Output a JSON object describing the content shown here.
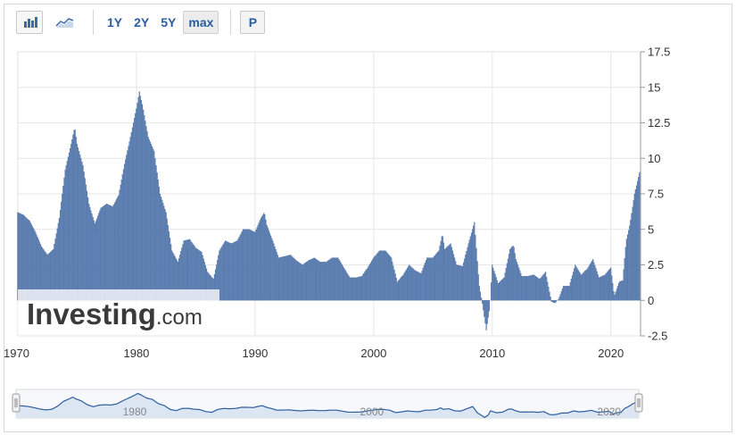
{
  "toolbar": {
    "ranges": [
      "1Y",
      "2Y",
      "5Y",
      "max"
    ],
    "active_range": "max",
    "p_label": "P",
    "icons": [
      "bar-chart-icon",
      "area-chart-icon"
    ]
  },
  "watermark": {
    "brand": "Investing",
    "suffix": ".com"
  },
  "colors": {
    "bar": "#5b7fb4",
    "bar_edge": "#3f6296",
    "grid": "#e6e6e6",
    "nav_fill": "#dce6f3",
    "nav_line": "#2e5e9e"
  },
  "chart_data": {
    "type": "bar",
    "grid": true,
    "xlim": [
      1970,
      2022.5
    ],
    "ylim": [
      -2.5,
      17.5
    ],
    "yticks": [
      "17.5",
      "15",
      "12.5",
      "10",
      "7.5",
      "5",
      "2.5",
      "0",
      "-2.5"
    ],
    "xticks": [
      "1970",
      "1980",
      "1990",
      "2000",
      "2010",
      "2020"
    ],
    "nav_xticks": [
      "1980",
      "2000",
      "2020"
    ],
    "series": [
      {
        "points": [
          [
            1970.0,
            6.2
          ],
          [
            1970.5,
            6.0
          ],
          [
            1971.0,
            5.6
          ],
          [
            1971.5,
            4.8
          ],
          [
            1972.0,
            3.8
          ],
          [
            1972.5,
            3.2
          ],
          [
            1973.0,
            3.6
          ],
          [
            1973.5,
            5.8
          ],
          [
            1974.0,
            9.2
          ],
          [
            1974.5,
            11.0
          ],
          [
            1974.8,
            12.2
          ],
          [
            1975.0,
            11.0
          ],
          [
            1975.5,
            9.5
          ],
          [
            1976.0,
            6.8
          ],
          [
            1976.5,
            5.4
          ],
          [
            1977.0,
            6.5
          ],
          [
            1977.5,
            6.8
          ],
          [
            1978.0,
            6.6
          ],
          [
            1978.5,
            7.4
          ],
          [
            1979.0,
            9.6
          ],
          [
            1979.5,
            11.5
          ],
          [
            1980.0,
            13.5
          ],
          [
            1980.25,
            14.7
          ],
          [
            1980.5,
            13.8
          ],
          [
            1981.0,
            11.5
          ],
          [
            1981.5,
            10.5
          ],
          [
            1982.0,
            7.5
          ],
          [
            1982.5,
            6.2
          ],
          [
            1983.0,
            3.5
          ],
          [
            1983.5,
            2.7
          ],
          [
            1984.0,
            4.2
          ],
          [
            1984.5,
            4.3
          ],
          [
            1985.0,
            3.7
          ],
          [
            1985.5,
            3.4
          ],
          [
            1986.0,
            2.0
          ],
          [
            1986.5,
            1.5
          ],
          [
            1987.0,
            3.5
          ],
          [
            1987.5,
            4.2
          ],
          [
            1988.0,
            4.0
          ],
          [
            1988.5,
            4.2
          ],
          [
            1989.0,
            5.0
          ],
          [
            1989.5,
            5.0
          ],
          [
            1990.0,
            4.8
          ],
          [
            1990.5,
            5.8
          ],
          [
            1990.8,
            6.2
          ],
          [
            1991.0,
            5.3
          ],
          [
            1991.5,
            4.2
          ],
          [
            1992.0,
            3.0
          ],
          [
            1992.5,
            3.1
          ],
          [
            1993.0,
            3.2
          ],
          [
            1993.5,
            2.8
          ],
          [
            1994.0,
            2.5
          ],
          [
            1994.5,
            2.8
          ],
          [
            1995.0,
            3.0
          ],
          [
            1995.5,
            2.7
          ],
          [
            1996.0,
            2.7
          ],
          [
            1996.5,
            3.0
          ],
          [
            1997.0,
            3.0
          ],
          [
            1997.5,
            2.3
          ],
          [
            1998.0,
            1.6
          ],
          [
            1998.5,
            1.6
          ],
          [
            1999.0,
            1.7
          ],
          [
            1999.5,
            2.3
          ],
          [
            2000.0,
            3.0
          ],
          [
            2000.5,
            3.5
          ],
          [
            2001.0,
            3.5
          ],
          [
            2001.5,
            3.0
          ],
          [
            2002.0,
            1.3
          ],
          [
            2002.5,
            1.8
          ],
          [
            2003.0,
            2.5
          ],
          [
            2003.5,
            2.1
          ],
          [
            2004.0,
            1.9
          ],
          [
            2004.5,
            3.0
          ],
          [
            2005.0,
            3.0
          ],
          [
            2005.5,
            3.5
          ],
          [
            2005.8,
            4.7
          ],
          [
            2006.0,
            3.6
          ],
          [
            2006.5,
            4.0
          ],
          [
            2007.0,
            2.5
          ],
          [
            2007.5,
            2.4
          ],
          [
            2008.0,
            4.0
          ],
          [
            2008.5,
            5.5
          ],
          [
            2008.9,
            1.1
          ],
          [
            2009.2,
            -0.4
          ],
          [
            2009.5,
            -2.1
          ],
          [
            2009.8,
            -0.5
          ],
          [
            2010.0,
            2.5
          ],
          [
            2010.5,
            1.2
          ],
          [
            2011.0,
            1.6
          ],
          [
            2011.5,
            3.6
          ],
          [
            2011.8,
            3.9
          ],
          [
            2012.0,
            2.9
          ],
          [
            2012.5,
            1.7
          ],
          [
            2013.0,
            1.7
          ],
          [
            2013.5,
            1.8
          ],
          [
            2014.0,
            1.5
          ],
          [
            2014.5,
            2.0
          ],
          [
            2015.0,
            -0.1
          ],
          [
            2015.3,
            -0.2
          ],
          [
            2015.6,
            0.1
          ],
          [
            2016.0,
            1.0
          ],
          [
            2016.5,
            1.0
          ],
          [
            2017.0,
            2.5
          ],
          [
            2017.5,
            1.8
          ],
          [
            2018.0,
            2.2
          ],
          [
            2018.5,
            2.9
          ],
          [
            2019.0,
            1.6
          ],
          [
            2019.5,
            1.8
          ],
          [
            2020.0,
            2.3
          ],
          [
            2020.3,
            0.3
          ],
          [
            2020.7,
            1.3
          ],
          [
            2021.0,
            1.4
          ],
          [
            2021.3,
            4.2
          ],
          [
            2021.6,
            5.3
          ],
          [
            2022.0,
            7.5
          ],
          [
            2022.45,
            9.1
          ]
        ]
      }
    ]
  }
}
